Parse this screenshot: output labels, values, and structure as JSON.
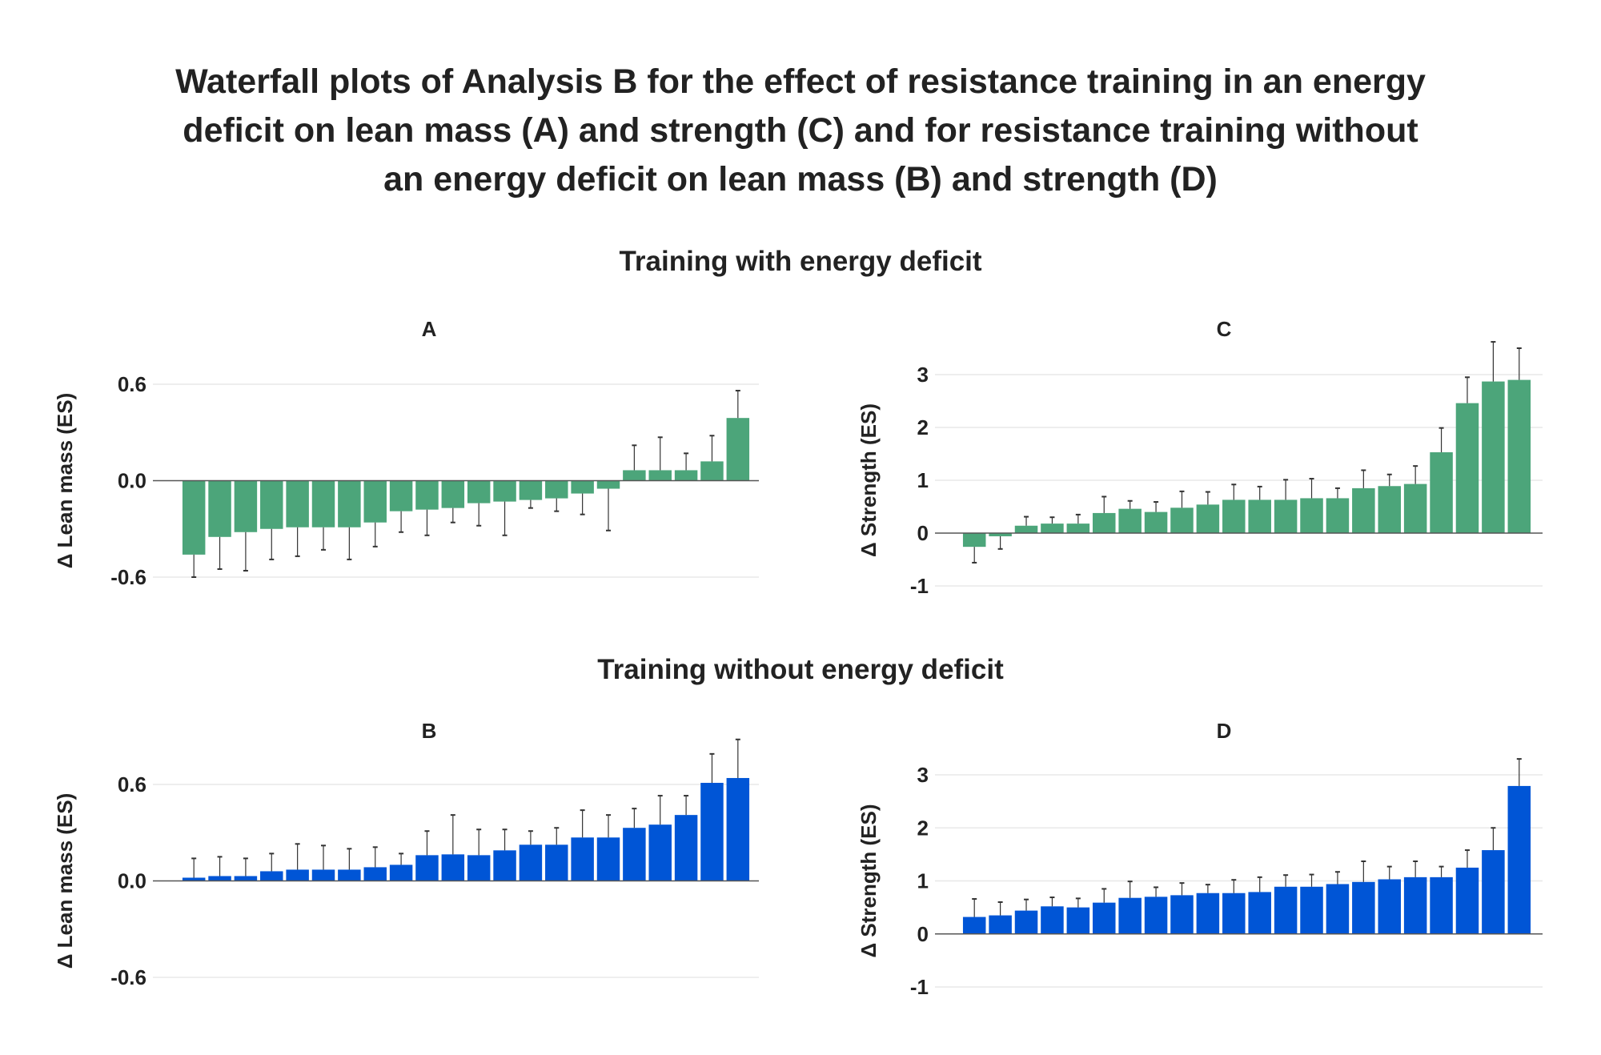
{
  "title_lines": [
    "Waterfall plots of Analysis B for the effect of resistance training in an energy",
    "deficit on lean mass (A) and strength (C) and for resistance training without",
    "an energy deficit on lean mass (B) and strength (D)"
  ],
  "sections": {
    "top": "Training with energy deficit",
    "bottom": "Training without energy deficit"
  },
  "colors": {
    "deficit": "#4CA57A",
    "no_deficit": "#0055D6",
    "error_bar": "#333333",
    "grid": "#e8e8e8"
  },
  "chart_data": [
    {
      "id": "A",
      "type": "bar",
      "title": "A",
      "ylabel": "Δ Lean mass (ES)",
      "ylim": [
        -0.6,
        0.6
      ],
      "yticks": [
        -0.6,
        0.0,
        0.6
      ],
      "ytick_labels": [
        "-0.6",
        "0.0",
        "0.6"
      ],
      "grid": true,
      "color_key": "deficit",
      "values": [
        -0.46,
        -0.35,
        -0.32,
        -0.3,
        -0.29,
        -0.29,
        -0.29,
        -0.26,
        -0.19,
        -0.18,
        -0.17,
        -0.14,
        -0.13,
        -0.12,
        -0.11,
        -0.08,
        -0.05,
        0.065,
        0.065,
        0.065,
        0.12,
        0.39
      ],
      "error_ends": [
        -0.6,
        -0.55,
        -0.56,
        -0.49,
        -0.47,
        -0.43,
        -0.49,
        -0.41,
        -0.32,
        -0.34,
        -0.26,
        -0.28,
        -0.34,
        -0.17,
        -0.19,
        -0.21,
        -0.31,
        0.22,
        0.27,
        0.17,
        0.28,
        0.56
      ]
    },
    {
      "id": "C",
      "type": "bar",
      "title": "C",
      "ylabel": "Δ Strength (ES)",
      "ylim": [
        -1,
        3
      ],
      "yticks": [
        -1,
        0,
        1,
        2,
        3
      ],
      "ytick_labels": [
        "-1",
        "0",
        "1",
        "2",
        "3"
      ],
      "grid": true,
      "color_key": "deficit",
      "values": [
        -0.26,
        -0.06,
        0.14,
        0.18,
        0.18,
        0.38,
        0.46,
        0.4,
        0.48,
        0.54,
        0.63,
        0.63,
        0.63,
        0.66,
        0.66,
        0.85,
        0.89,
        0.93,
        1.53,
        2.46,
        2.87,
        2.9
      ],
      "error_ends": [
        -0.56,
        -0.3,
        0.31,
        0.3,
        0.35,
        0.69,
        0.61,
        0.59,
        0.79,
        0.78,
        0.92,
        0.88,
        1.01,
        1.03,
        0.85,
        1.19,
        1.11,
        1.27,
        1.99,
        2.95,
        3.62,
        3.5
      ]
    },
    {
      "id": "B",
      "type": "bar",
      "title": "B",
      "ylabel": "Δ Lean mass (ES)",
      "ylim": [
        -0.6,
        0.6
      ],
      "yticks": [
        -0.6,
        0.0,
        0.6
      ],
      "ytick_labels": [
        "-0.6",
        "0.0",
        "0.6"
      ],
      "grid": true,
      "color_key": "no_deficit",
      "values": [
        0.02,
        0.03,
        0.03,
        0.06,
        0.07,
        0.07,
        0.07,
        0.085,
        0.1,
        0.16,
        0.165,
        0.16,
        0.19,
        0.225,
        0.225,
        0.27,
        0.27,
        0.33,
        0.35,
        0.41,
        0.61,
        0.64
      ],
      "error_ends": [
        0.14,
        0.15,
        0.14,
        0.17,
        0.23,
        0.22,
        0.2,
        0.21,
        0.17,
        0.31,
        0.41,
        0.32,
        0.32,
        0.31,
        0.33,
        0.44,
        0.41,
        0.45,
        0.53,
        0.53,
        0.79,
        0.88
      ]
    },
    {
      "id": "D",
      "type": "bar",
      "title": "D",
      "ylabel": "Δ Strength (ES)",
      "ylim": [
        -1,
        3
      ],
      "yticks": [
        -1,
        0,
        1,
        2,
        3
      ],
      "ytick_labels": [
        "-1",
        "0",
        "1",
        "2",
        "3"
      ],
      "grid": true,
      "color_key": "no_deficit",
      "values": [
        0.32,
        0.35,
        0.44,
        0.52,
        0.5,
        0.59,
        0.68,
        0.7,
        0.73,
        0.77,
        0.77,
        0.79,
        0.89,
        0.89,
        0.94,
        0.98,
        1.03,
        1.07,
        1.07,
        1.25,
        1.58,
        2.79
      ],
      "error_ends": [
        0.66,
        0.6,
        0.65,
        0.69,
        0.67,
        0.85,
        0.99,
        0.88,
        0.96,
        0.93,
        1.02,
        1.07,
        1.11,
        1.12,
        1.17,
        1.37,
        1.27,
        1.37,
        1.27,
        1.58,
        2.0,
        3.3
      ]
    }
  ]
}
